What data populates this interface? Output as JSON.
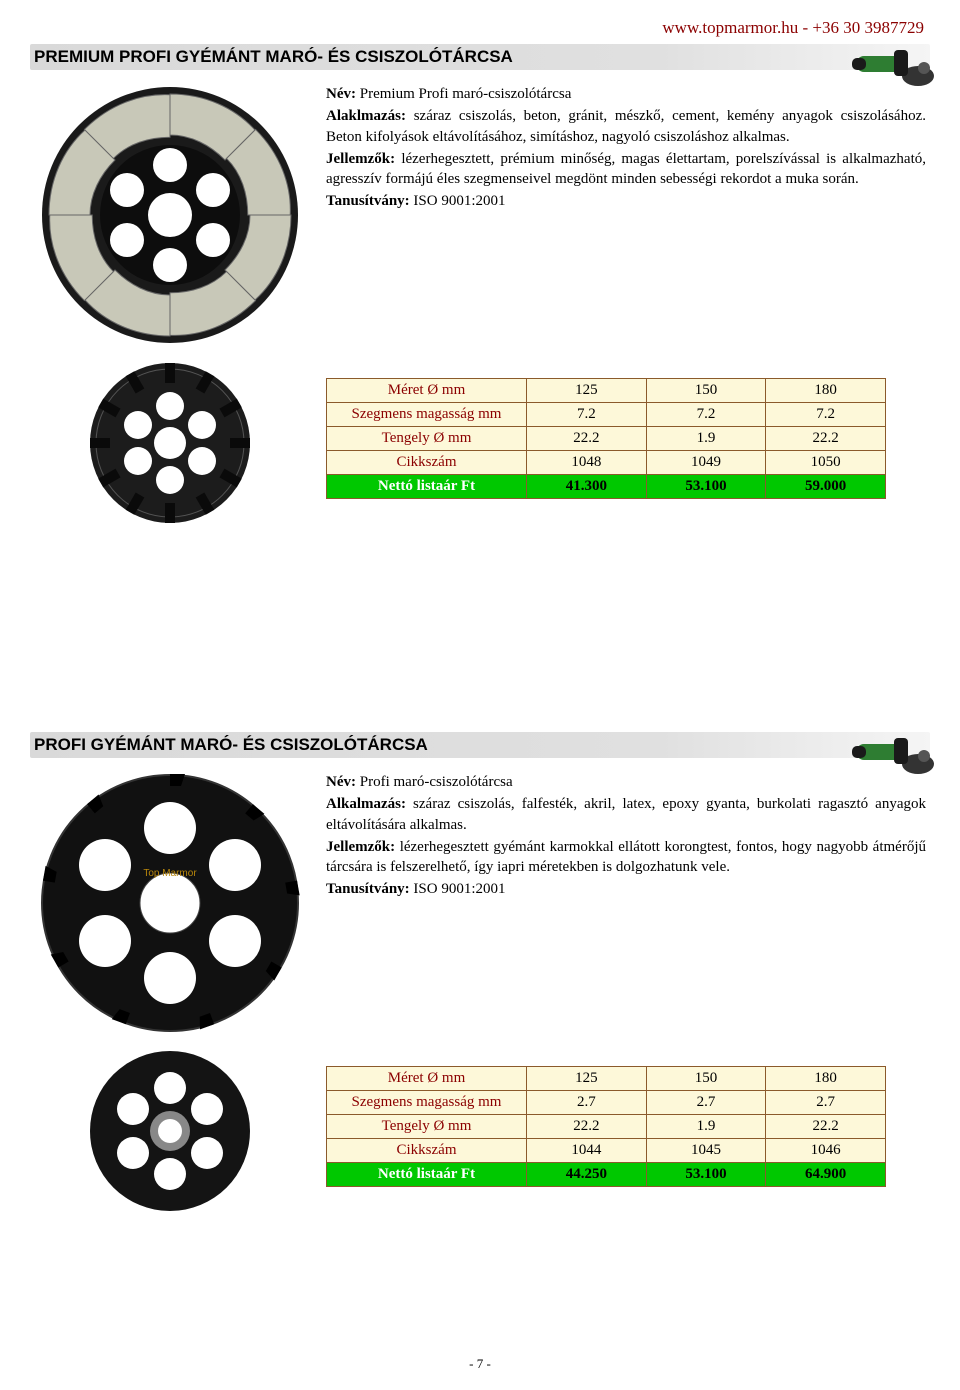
{
  "header": {
    "site": "www.topmarmor.hu",
    "sep": "  -  ",
    "phone": "+36 30 3987729"
  },
  "section1": {
    "title": "PREMIUM PROFI GYÉMÁNT MARÓ- ÉS CSISZOLÓTÁRCSA",
    "nev_label": "Név:",
    "nev": " Premium Profi maró-csiszolótárcsa",
    "alk_label": "Alaklmazás:",
    "alk": " száraz csiszolás, beton, gránit, mészkő, cement, kemény anyagok csiszolásához. Beton kifolyások eltávolításához, simításhoz, nagyoló csiszoláshoz alkalmas.",
    "jel_label": "Jellemzők:",
    "jel": " lézerhegesztett, prémium minőség, magas élettartam, porelszívással is alkalmazható, agresszív formájú éles szegmenseivel megdönt minden sebességi rekordot a muka során.",
    "tan_label": "Tanusítvány:",
    "tan": " ISO 9001:2001",
    "table": {
      "rows": [
        {
          "label": "Méret Ø mm",
          "v": [
            "125",
            "150",
            "180"
          ],
          "cls": "beige"
        },
        {
          "label": "Szegmens magasság mm",
          "v": [
            "7.2",
            "7.2",
            "7.2"
          ],
          "cls": "beige"
        },
        {
          "label": "Tengely Ø mm",
          "v": [
            "22.2",
            "1.9",
            "22.2"
          ],
          "cls": "beige"
        },
        {
          "label": "Cikkszám",
          "v": [
            "1048",
            "1049",
            "1050"
          ],
          "cls": "beige"
        },
        {
          "label": "Nettó listaár Ft",
          "v": [
            "41.300",
            "53.100",
            "59.000"
          ],
          "cls": "green"
        }
      ]
    }
  },
  "section2": {
    "title": "PROFI GYÉMÁNT MARÓ- ÉS CSISZOLÓTÁRCSA",
    "nev_label": "Név:",
    "nev": " Profi maró-csiszolótárcsa",
    "alk_label": "Alkalmazás:",
    "alk": " száraz csiszolás, falfesték, akril, latex, epoxy gyanta, burkolati ragasztó anyagok eltávolítására alkalmas.",
    "jel_label": "Jellemzők:",
    "jel": " lézerhegesztett gyémánt karmokkal ellátott korongtest, fontos, hogy nagyobb átmérőjű tárcsára is felszerelhető, így iapri méretekben is dolgozhatunk vele.",
    "tan_label": "Tanusítvány:",
    "tan": " ISO 9001:2001",
    "table": {
      "rows": [
        {
          "label": "Méret Ø mm",
          "v": [
            "125",
            "150",
            "180"
          ],
          "cls": "beige"
        },
        {
          "label": "Szegmens magasság mm",
          "v": [
            "2.7",
            "2.7",
            "2.7"
          ],
          "cls": "beige"
        },
        {
          "label": "Tengely Ø mm",
          "v": [
            "22.2",
            "1.9",
            "22.2"
          ],
          "cls": "beige"
        },
        {
          "label": "Cikkszám",
          "v": [
            "1044",
            "1045",
            "1046"
          ],
          "cls": "beige"
        },
        {
          "label": "Nettó listaár Ft",
          "v": [
            "44.250",
            "53.100",
            "64.900"
          ],
          "cls": "green"
        }
      ]
    }
  },
  "page": "- 7 -"
}
